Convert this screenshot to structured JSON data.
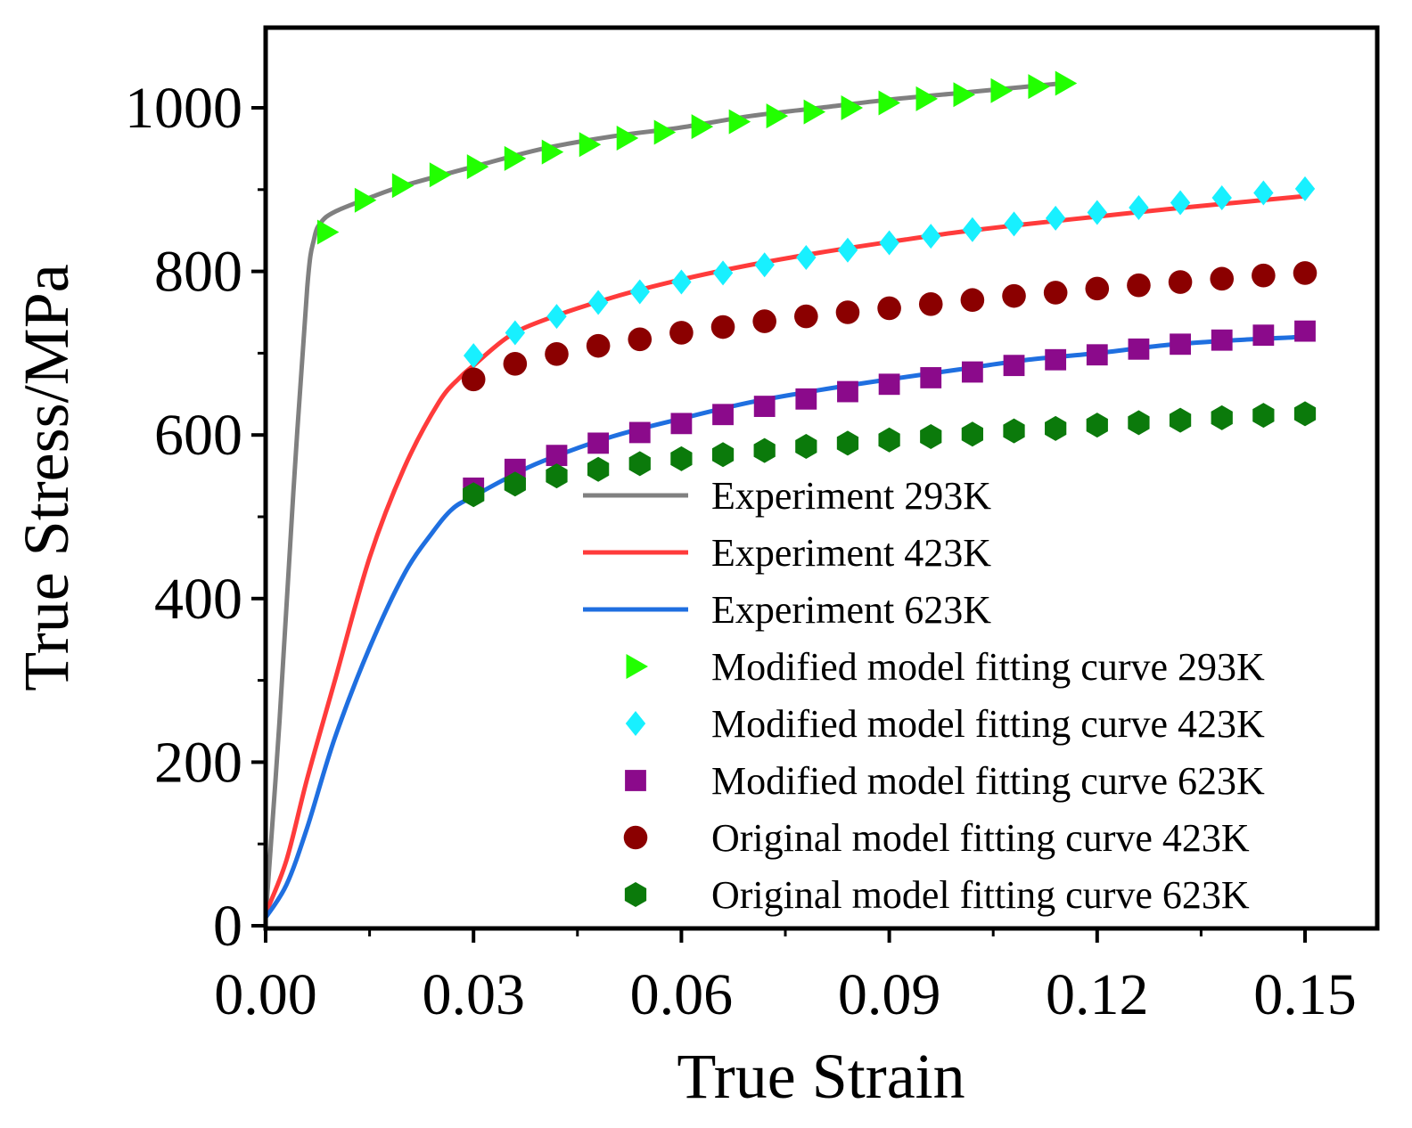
{
  "chart_data": {
    "type": "line",
    "title": "",
    "xlabel": "True Strain",
    "ylabel": "True Stress/MPa",
    "xlim": [
      0.0,
      0.153
    ],
    "ylim": [
      0,
      1100
    ],
    "x_ticks": [
      "0.00",
      "0.03",
      "0.06",
      "0.09",
      "0.12",
      "0.15"
    ],
    "x_tick_values": [
      0.0,
      0.03,
      0.06,
      0.09,
      0.12,
      0.15
    ],
    "y_ticks": [
      "0",
      "200",
      "400",
      "600",
      "800",
      "1000"
    ],
    "y_tick_values": [
      0,
      200,
      400,
      600,
      800,
      1000
    ],
    "grid": false,
    "legend_position": "lower-right",
    "series": [
      {
        "name": "Experiment 293K",
        "kind": "line",
        "color": "#808080",
        "x": [
          0,
          0.002,
          0.004,
          0.006,
          0.007,
          0.008,
          0.01,
          0.015,
          0.02,
          0.03,
          0.04,
          0.05,
          0.06,
          0.07,
          0.08,
          0.09,
          0.1,
          0.11,
          0.115
        ],
        "y": [
          10,
          250,
          530,
          780,
          840,
          860,
          873,
          890,
          905,
          928,
          950,
          965,
          976,
          990,
          1000,
          1010,
          1018,
          1026,
          1030
        ]
      },
      {
        "name": "Experiment 423K",
        "kind": "line",
        "color": "#ff3b3b",
        "x": [
          0,
          0.003,
          0.006,
          0.01,
          0.015,
          0.02,
          0.025,
          0.028,
          0.03,
          0.035,
          0.04,
          0.05,
          0.06,
          0.07,
          0.08,
          0.09,
          0.1,
          0.11,
          0.12,
          0.13,
          0.14,
          0.15
        ],
        "y": [
          15,
          80,
          180,
          300,
          450,
          560,
          640,
          670,
          685,
          720,
          740,
          768,
          790,
          808,
          823,
          836,
          848,
          858,
          867,
          876,
          884,
          892
        ]
      },
      {
        "name": "Experiment 623K",
        "kind": "line",
        "color": "#1f6fe0",
        "x": [
          0,
          0.003,
          0.006,
          0.01,
          0.015,
          0.02,
          0.024,
          0.027,
          0.03,
          0.035,
          0.04,
          0.05,
          0.06,
          0.07,
          0.08,
          0.09,
          0.1,
          0.11,
          0.12,
          0.13,
          0.14,
          0.15
        ],
        "y": [
          10,
          50,
          120,
          230,
          340,
          430,
          480,
          510,
          525,
          548,
          568,
          598,
          620,
          640,
          655,
          668,
          680,
          692,
          700,
          710,
          716,
          720
        ]
      },
      {
        "name": "Modified model fitting curve 293K",
        "kind": "marker",
        "marker": "triangle-right",
        "color": "#22ff00",
        "x": [
          0.0088,
          0.0142,
          0.0196,
          0.025,
          0.0304,
          0.0358,
          0.0412,
          0.0466,
          0.052,
          0.0574,
          0.0628,
          0.0682,
          0.0736,
          0.079,
          0.0844,
          0.0898,
          0.0952,
          0.1006,
          0.106,
          0.1114,
          0.1153
        ],
        "y": [
          848,
          887,
          905,
          918,
          928,
          938,
          946,
          955,
          963,
          970,
          977,
          983,
          990,
          995,
          1000,
          1006,
          1011,
          1016,
          1021,
          1026,
          1030
        ]
      },
      {
        "name": "Modified model fitting curve 423K",
        "kind": "marker",
        "marker": "diamond",
        "color": "#18f0ff",
        "x": [
          0.03,
          0.036,
          0.042,
          0.048,
          0.054,
          0.06,
          0.066,
          0.072,
          0.078,
          0.084,
          0.09,
          0.096,
          0.102,
          0.108,
          0.114,
          0.12,
          0.126,
          0.132,
          0.138,
          0.144,
          0.15
        ],
        "y": [
          697,
          725,
          745,
          762,
          775,
          787,
          798,
          808,
          817,
          826,
          835,
          843,
          851,
          858,
          865,
          872,
          878,
          884,
          890,
          896,
          901
        ]
      },
      {
        "name": "Modified model fitting curve 623K",
        "kind": "marker",
        "marker": "square",
        "color": "#8b0a8b",
        "x": [
          0.03,
          0.036,
          0.042,
          0.048,
          0.054,
          0.06,
          0.066,
          0.072,
          0.078,
          0.084,
          0.09,
          0.096,
          0.102,
          0.108,
          0.114,
          0.12,
          0.126,
          0.132,
          0.138,
          0.144,
          0.15
        ],
        "y": [
          535,
          558,
          575,
          590,
          603,
          614,
          625,
          635,
          644,
          653,
          662,
          670,
          677,
          685,
          692,
          698,
          705,
          711,
          716,
          722,
          727
        ]
      },
      {
        "name": "Original model fitting curve 423K",
        "kind": "marker",
        "marker": "circle",
        "color": "#8b0000",
        "x": [
          0.03,
          0.036,
          0.042,
          0.048,
          0.054,
          0.06,
          0.066,
          0.072,
          0.078,
          0.084,
          0.09,
          0.096,
          0.102,
          0.108,
          0.114,
          0.12,
          0.126,
          0.132,
          0.138,
          0.144,
          0.15
        ],
        "y": [
          668,
          687,
          699,
          709,
          717,
          725,
          732,
          739,
          745,
          750,
          755,
          760,
          765,
          770,
          774,
          779,
          783,
          787,
          791,
          795,
          798
        ]
      },
      {
        "name": "Original model fitting curve 623K",
        "kind": "marker",
        "marker": "hexagon",
        "color": "#0b7a0b",
        "x": [
          0.03,
          0.036,
          0.042,
          0.048,
          0.054,
          0.06,
          0.066,
          0.072,
          0.078,
          0.084,
          0.09,
          0.096,
          0.102,
          0.108,
          0.114,
          0.12,
          0.126,
          0.132,
          0.138,
          0.144,
          0.15
        ],
        "y": [
          527,
          540,
          550,
          558,
          565,
          571,
          576,
          581,
          586,
          590,
          594,
          598,
          601,
          605,
          608,
          612,
          615,
          618,
          621,
          624,
          626
        ]
      }
    ]
  }
}
